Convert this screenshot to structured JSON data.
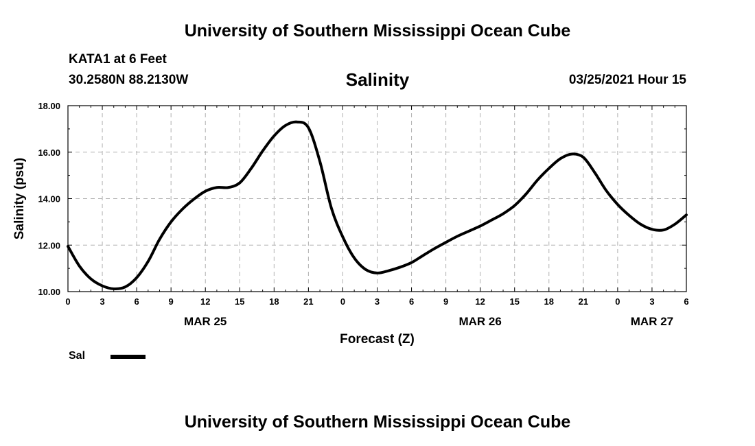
{
  "header": {
    "top_title": "University of Southern Mississippi Ocean Cube",
    "bottom_title": "University of Southern Mississippi Ocean Cube",
    "station": "KATA1 at 6 Feet",
    "coords": "30.2580N 88.2130W",
    "datetime": "03/25/2021 Hour 15"
  },
  "chart_data": {
    "type": "line",
    "title": "Salinity",
    "xlabel": "Forecast (Z)",
    "ylabel": "Salinity (psu)",
    "ylim": [
      10.0,
      18.0
    ],
    "yticks": [
      "10.00",
      "12.00",
      "14.00",
      "16.00",
      "18.00"
    ],
    "xlim": [
      0,
      54
    ],
    "xticks": [
      0,
      3,
      6,
      9,
      12,
      15,
      18,
      21,
      24,
      27,
      30,
      33,
      36,
      39,
      42,
      45,
      48,
      51,
      54
    ],
    "xtick_labels": [
      "0",
      "3",
      "6",
      "9",
      "12",
      "15",
      "18",
      "21",
      "0",
      "3",
      "6",
      "9",
      "12",
      "15",
      "18",
      "21",
      "0",
      "3",
      "6"
    ],
    "date_labels": [
      {
        "x": 12,
        "label": "MAR 25"
      },
      {
        "x": 36,
        "label": "MAR 26"
      },
      {
        "x": 51,
        "label": "MAR 27"
      }
    ],
    "grid": true,
    "legend": "bottom-left",
    "series": [
      {
        "name": "Sal",
        "color": "#000000",
        "x": [
          0,
          1,
          2,
          3,
          4,
          5,
          6,
          7,
          8,
          9,
          10,
          11,
          12,
          13,
          14,
          15,
          16,
          17,
          18,
          19,
          20,
          21,
          22,
          23,
          24,
          25,
          26,
          27,
          28,
          29,
          30,
          31,
          32,
          33,
          34,
          35,
          36,
          37,
          38,
          39,
          40,
          41,
          42,
          43,
          44,
          45,
          46,
          47,
          48,
          49,
          50,
          51,
          52,
          53,
          54
        ],
        "y": [
          11.95,
          11.1,
          10.55,
          10.25,
          10.12,
          10.2,
          10.6,
          11.3,
          12.25,
          13.0,
          13.55,
          13.98,
          14.32,
          14.48,
          14.48,
          14.68,
          15.3,
          16.05,
          16.7,
          17.15,
          17.3,
          17.05,
          15.6,
          13.6,
          12.35,
          11.45,
          10.95,
          10.8,
          10.9,
          11.05,
          11.25,
          11.55,
          11.85,
          12.12,
          12.38,
          12.6,
          12.82,
          13.08,
          13.35,
          13.7,
          14.2,
          14.8,
          15.3,
          15.72,
          15.92,
          15.78,
          15.12,
          14.35,
          13.75,
          13.28,
          12.9,
          12.68,
          12.65,
          12.9,
          13.3
        ]
      }
    ]
  }
}
